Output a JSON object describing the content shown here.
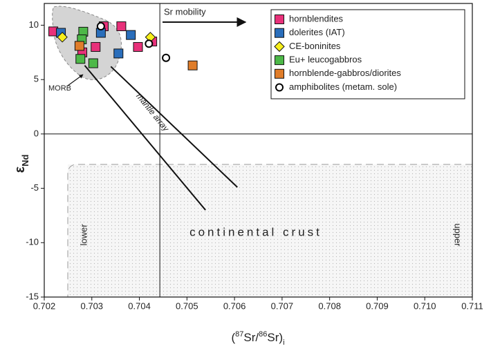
{
  "chart_data": {
    "type": "scatter",
    "xlabel": [
      "(",
      "87",
      "Sr/",
      "86",
      "Sr)",
      "i"
    ],
    "ylabel": [
      "ε",
      "Nd"
    ],
    "xlim": [
      0.702,
      0.711
    ],
    "ylim": [
      -15,
      12
    ],
    "xticks": [
      0.702,
      0.703,
      0.704,
      0.705,
      0.706,
      0.707,
      0.708,
      0.709,
      {
        "value": 0.71,
        "label": "0.710"
      },
      0.711
    ],
    "yticks": [
      10,
      5,
      0,
      -5,
      -10,
      -15
    ],
    "reference_x": 0.70443,
    "reference_y": 0,
    "mantle_array": [
      {
        "x": [
          0.70285,
          0.70539
        ],
        "y": [
          6.3,
          -7.0
        ]
      },
      {
        "x": [
          0.7034,
          0.70606
        ],
        "y": [
          6.2,
          -4.9
        ]
      }
    ],
    "annotations": {
      "sr_mobility": "Sr mobility",
      "morb": "MORB",
      "mantle_array": "mantle array",
      "continental_crust": "continental crust",
      "lower": "lower",
      "upper": "upper"
    },
    "legend": "upper right",
    "series": [
      {
        "name": "hornblendites",
        "color": "#e8317a",
        "marker": "square",
        "x": [
          0.70219,
          0.7028,
          0.70308,
          0.70325,
          0.70362,
          0.70397,
          0.70427
        ],
        "y": [
          9.43,
          7.5,
          8.0,
          9.9,
          9.9,
          8.0,
          8.5
        ]
      },
      {
        "name": "dolerites (IAT)",
        "color": "#2a6ebb",
        "marker": "square",
        "x": [
          0.70235,
          0.70319,
          0.70382,
          0.70356
        ],
        "y": [
          9.3,
          9.3,
          9.1,
          7.4
        ]
      },
      {
        "name": "CE-boninites",
        "color": "#f7ef1c",
        "marker": "diamond",
        "x": [
          0.70238,
          0.70423
        ],
        "y": [
          8.9,
          8.9
        ]
      },
      {
        "name": "Eu+ leucogabbros",
        "color": "#4db848",
        "marker": "square",
        "x": [
          0.70282,
          0.70279,
          0.70276,
          0.70303
        ],
        "y": [
          9.4,
          8.7,
          6.9,
          6.5
        ]
      },
      {
        "name": "hornblende-gabbros/diorites",
        "color": "#e07d2a",
        "marker": "square",
        "x": [
          0.70274,
          0.70512
        ],
        "y": [
          8.1,
          6.3
        ]
      },
      {
        "name": "amphibolites (metam. sole)",
        "color": "#000000",
        "marker": "circle",
        "x": [
          0.70319,
          0.7042,
          0.70456
        ],
        "y": [
          9.9,
          8.3,
          7.0
        ]
      }
    ]
  }
}
